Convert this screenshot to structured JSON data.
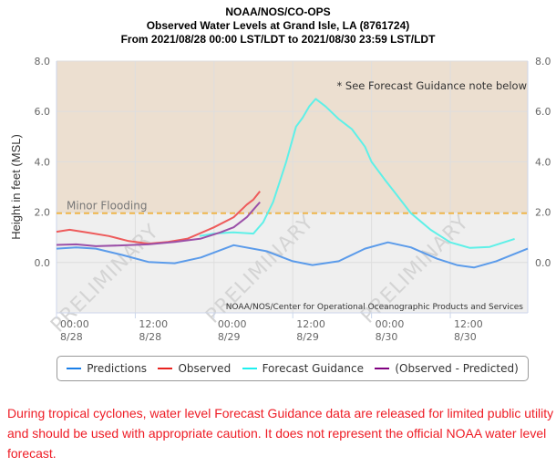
{
  "header": {
    "line1": "NOAA/NOS/CO-OPS",
    "line2": "Observed Water Levels at Grand Isle, LA (8761724)",
    "line3": "From 2021/08/28 00:00 LST/LDT to 2021/08/30 23:59 LST/LDT"
  },
  "chart_data": {
    "type": "line",
    "title": "Observed Water Levels at Grand Isle, LA (8761724)",
    "xlabel": "",
    "ylabel": "Height in feet (MSL)",
    "x_units": "hours since 2021/08/28 00:00",
    "xlim": [
      0,
      71.8
    ],
    "ylim": [
      -2.0,
      8.0
    ],
    "yticks": [
      0.0,
      2.0,
      4.0,
      6.0,
      8.0
    ],
    "ytick_labels": [
      "0.0",
      "2.0",
      "4.0",
      "6.0",
      "8.0"
    ],
    "xticks": [
      0,
      12,
      24,
      36,
      48,
      60
    ],
    "xtick_labels": [
      {
        "time": "00:00",
        "date": "8/28"
      },
      {
        "time": "12:00",
        "date": "8/28"
      },
      {
        "time": "00:00",
        "date": "8/29"
      },
      {
        "time": "12:00",
        "date": "8/29"
      },
      {
        "time": "00:00",
        "date": "8/30"
      },
      {
        "time": "12:00",
        "date": "8/30"
      }
    ],
    "grid": true,
    "threshold": {
      "label": "Minor Flooding",
      "value": 1.96,
      "color": "#f0b54a",
      "above_fill": "#ecdfd0",
      "below_fill": "#efefef"
    },
    "annotation": "* See Forecast Guidance note below",
    "credit": "NOAA/NOS/Center for Operational Oceanographic Products and Services",
    "watermark": "PRELIMINARY",
    "legend_position": "bottom",
    "series": [
      {
        "name": "Predictions",
        "color": "#5b9bea",
        "x": [
          0,
          3,
          6,
          10,
          14,
          18,
          22,
          27,
          32,
          36,
          39,
          43,
          47,
          50.5,
          54,
          58,
          61,
          63.6,
          67,
          71.8
        ],
        "y": [
          0.55,
          0.6,
          0.55,
          0.3,
          0.02,
          -0.03,
          0.2,
          0.69,
          0.45,
          0.05,
          -0.1,
          0.05,
          0.55,
          0.8,
          0.6,
          0.15,
          -0.1,
          -0.2,
          0.05,
          0.55
        ]
      },
      {
        "name": "Observed",
        "color": "#ee5b5b",
        "x": [
          0,
          2,
          5,
          8,
          11,
          14,
          17,
          20,
          24,
          27,
          29,
          30,
          31
        ],
        "y": [
          1.22,
          1.3,
          1.18,
          1.05,
          0.85,
          0.75,
          0.82,
          0.95,
          1.4,
          1.8,
          2.3,
          2.5,
          2.83
        ]
      },
      {
        "name": "Forecast Guidance",
        "color": "#5ef0e8",
        "x": [
          21.8,
          24,
          27,
          30,
          31.5,
          33,
          35,
          36.5,
          37.5,
          38.5,
          39.5,
          41,
          43,
          45,
          47,
          48,
          50,
          51.5,
          54,
          57,
          60,
          63,
          66,
          69.8
        ],
        "y": [
          1.05,
          1.15,
          1.2,
          1.15,
          1.6,
          2.4,
          4.0,
          5.4,
          5.75,
          6.2,
          6.5,
          6.2,
          5.7,
          5.3,
          4.6,
          4.0,
          3.3,
          2.8,
          1.96,
          1.3,
          0.8,
          0.58,
          0.62,
          0.94
        ]
      },
      {
        "name": "(Observed - Predicted)",
        "color": "#9b50a8",
        "x": [
          0,
          3,
          6,
          10,
          14,
          18,
          22,
          25,
          27,
          29,
          30,
          31
        ],
        "y": [
          0.7,
          0.72,
          0.65,
          0.68,
          0.72,
          0.82,
          0.95,
          1.2,
          1.4,
          1.8,
          2.1,
          2.4
        ]
      }
    ]
  },
  "legend": {
    "items": [
      {
        "label": "Predictions",
        "color": "#1a7fe8"
      },
      {
        "label": "Observed",
        "color": "#e8231f"
      },
      {
        "label": "Forecast Guidance",
        "color": "#1ef0ef"
      },
      {
        "label": "(Observed - Predicted)",
        "color": "#800080"
      }
    ]
  },
  "note": "During tropical cyclones, water level Forecast Guidance data are released for limited public utility and should be used with appropriate caution. It does not represent the official NOAA water level forecast."
}
